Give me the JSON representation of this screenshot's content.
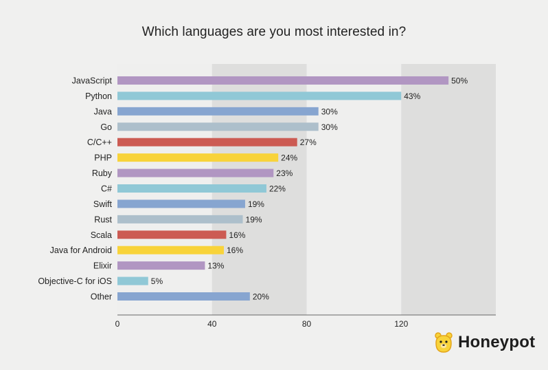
{
  "chart_data": {
    "type": "bar",
    "orientation": "horizontal",
    "title": "Which languages are you most interested in?",
    "categories": [
      "JavaScript",
      "Python",
      "Java",
      "Go",
      "C/C++",
      "PHP",
      "Ruby",
      "C#",
      "Swift",
      "Rust",
      "Scala",
      "Java for Android",
      "Elixir",
      "Objective-C for iOS",
      "Other"
    ],
    "values": [
      140,
      120,
      85,
      85,
      76,
      68,
      66,
      63,
      54,
      53,
      46,
      45,
      37,
      13,
      56
    ],
    "value_labels": [
      "50%",
      "43%",
      "30%",
      "30%",
      "27%",
      "24%",
      "23%",
      "22%",
      "19%",
      "19%",
      "16%",
      "16%",
      "13%",
      "5%",
      "20%"
    ],
    "colors": [
      "#b196c2",
      "#90c8d6",
      "#87a5d0",
      "#adbfcb",
      "#cc5b53",
      "#f8d33a",
      "#b196c2",
      "#90c8d6",
      "#87a5d0",
      "#adbfcb",
      "#cc5b53",
      "#f8d33a",
      "#b196c2",
      "#90c8d6",
      "#87a5d0"
    ],
    "xlim": [
      0,
      160
    ],
    "xticks": [
      0,
      40,
      80,
      120
    ],
    "xlabel": "",
    "ylabel": "",
    "grid": false,
    "background_bands": true,
    "legend": "none"
  },
  "branding": {
    "name": "Honeypot",
    "icon": "bear-icon",
    "color": "#f8d33a"
  }
}
